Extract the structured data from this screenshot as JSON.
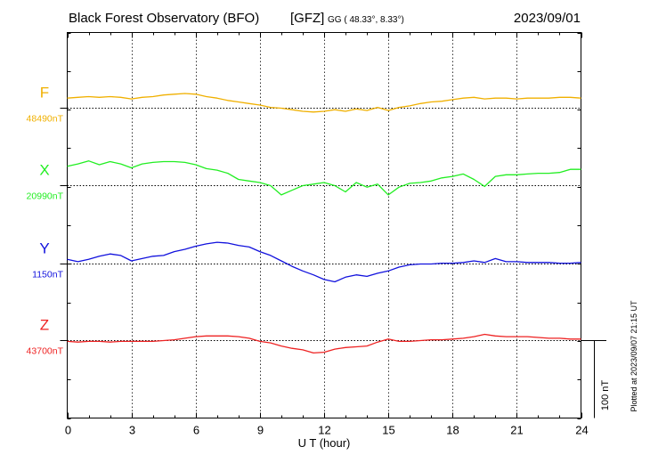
{
  "header": {
    "title": "Black Forest Observatory (BFO)",
    "agency": "[GFZ]",
    "coords": "GG ( 48.33°,   8.33°)",
    "date": "2023/09/01"
  },
  "plotted_note": "Plotted at 2023/09/07 21:15 UT",
  "scale_label": "100 nT",
  "chart_data": {
    "type": "line",
    "title": "Black Forest Observatory (BFO)",
    "xlabel": "U T (hour)",
    "ylabel": "",
    "xlim": [
      0,
      24
    ],
    "x_ticks": [
      0,
      3,
      6,
      9,
      12,
      15,
      18,
      21,
      24
    ],
    "x_tick_labels": [
      "0",
      "3",
      "6",
      "9",
      "12",
      "15",
      "18",
      "21",
      "24"
    ],
    "grid": true,
    "scale_bar_nT": 100,
    "series": [
      {
        "name": "F",
        "baseline_label": "48490nT",
        "baseline_nT": 48490,
        "color": "#f0b000",
        "x": [
          0,
          0.5,
          1,
          1.5,
          2,
          2.5,
          3,
          3.5,
          4,
          4.5,
          5,
          5.5,
          6,
          6.5,
          7,
          7.5,
          8,
          8.5,
          9,
          9.5,
          10,
          10.5,
          11,
          11.5,
          12,
          12.5,
          13,
          13.5,
          14,
          14.5,
          15,
          15.5,
          16,
          16.5,
          17,
          17.5,
          18,
          18.5,
          19,
          19.5,
          20,
          20.5,
          21,
          21.5,
          22,
          22.5,
          23,
          23.5,
          24
        ],
        "y": [
          48503,
          48504,
          48505,
          48504,
          48505,
          48504,
          48502,
          48504,
          48505,
          48507,
          48508,
          48509,
          48508,
          48505,
          48503,
          48500,
          48498,
          48496,
          48494,
          48491,
          48490,
          48488,
          48486,
          48485,
          48486,
          48488,
          48486,
          48489,
          48487,
          48491,
          48487,
          48491,
          48493,
          48496,
          48498,
          48499,
          48501,
          48503,
          48504,
          48502,
          48503,
          48503,
          48502,
          48503,
          48503,
          48503,
          48504,
          48504,
          48503
        ]
      },
      {
        "name": "X",
        "baseline_label": "20990nT",
        "baseline_nT": 20990,
        "color": "#22ee22",
        "x": [
          0,
          0.5,
          1,
          1.5,
          2,
          2.5,
          3,
          3.5,
          4,
          4.5,
          5,
          5.5,
          6,
          6.5,
          7,
          7.5,
          8,
          8.5,
          9,
          9.5,
          10,
          10.5,
          11,
          11.5,
          12,
          12.5,
          13,
          13.5,
          14,
          14.5,
          15,
          15.5,
          16,
          16.5,
          17,
          17.5,
          18,
          18.5,
          19,
          19.5,
          20,
          20.5,
          21,
          21.5,
          22,
          22.5,
          23,
          23.5,
          24
        ],
        "y": [
          21015,
          21018,
          21022,
          21017,
          21021,
          21018,
          21013,
          21018,
          21020,
          21021,
          21021,
          21020,
          21017,
          21012,
          21010,
          21006,
          20998,
          20996,
          20994,
          20990,
          20978,
          20984,
          20990,
          20992,
          20994,
          20990,
          20982,
          20994,
          20988,
          20992,
          20978,
          20988,
          20993,
          20994,
          20996,
          21000,
          21002,
          21005,
          20998,
          20989,
          21002,
          21004,
          21004,
          21005,
          21006,
          21006,
          21007,
          21011,
          21011
        ]
      },
      {
        "name": "Y",
        "baseline_label": "1150nT",
        "baseline_nT": 1150,
        "color": "#1111dd",
        "x": [
          0,
          0.5,
          1,
          1.5,
          2,
          2.5,
          3,
          3.5,
          4,
          4.5,
          5,
          5.5,
          6,
          6.5,
          7,
          7.5,
          8,
          8.5,
          9,
          9.5,
          10,
          10.5,
          11,
          11.5,
          12,
          12.5,
          13,
          13.5,
          14,
          14.5,
          15,
          15.5,
          16,
          16.5,
          17,
          17.5,
          18,
          18.5,
          19,
          19.5,
          20,
          20.5,
          21,
          21.5,
          22,
          22.5,
          23,
          23.5,
          24
        ],
        "y": [
          1156,
          1153,
          1156,
          1160,
          1163,
          1161,
          1154,
          1157,
          1160,
          1161,
          1166,
          1169,
          1173,
          1176,
          1178,
          1177,
          1174,
          1172,
          1166,
          1161,
          1154,
          1147,
          1141,
          1136,
          1130,
          1127,
          1133,
          1136,
          1134,
          1138,
          1141,
          1146,
          1149,
          1150,
          1150,
          1151,
          1151,
          1152,
          1154,
          1152,
          1157,
          1153,
          1153,
          1152,
          1152,
          1152,
          1151,
          1151,
          1152
        ]
      },
      {
        "name": "Z",
        "baseline_label": "43700nT",
        "baseline_nT": 43700,
        "color": "#ee2222",
        "x": [
          0,
          0.5,
          1,
          1.5,
          2,
          2.5,
          3,
          3.5,
          4,
          4.5,
          5,
          5.5,
          6,
          6.5,
          7,
          7.5,
          8,
          8.5,
          9,
          9.5,
          10,
          10.5,
          11,
          11.5,
          12,
          12.5,
          13,
          13.5,
          14,
          14.5,
          15,
          15.5,
          16,
          16.5,
          17,
          17.5,
          18,
          18.5,
          19,
          19.5,
          20,
          20.5,
          21,
          21.5,
          22,
          22.5,
          23,
          23.5,
          24
        ],
        "y": [
          43699,
          43698,
          43699,
          43699,
          43698,
          43699,
          43699,
          43699,
          43699,
          43700,
          43701,
          43703,
          43705,
          43706,
          43706,
          43706,
          43705,
          43703,
          43699,
          43697,
          43693,
          43690,
          43688,
          43684,
          43685,
          43689,
          43691,
          43692,
          43693,
          43698,
          43702,
          43699,
          43699,
          43700,
          43701,
          43701,
          43702,
          43703,
          43705,
          43708,
          43706,
          43705,
          43705,
          43705,
          43704,
          43703,
          43703,
          43702,
          43702
        ]
      }
    ]
  }
}
